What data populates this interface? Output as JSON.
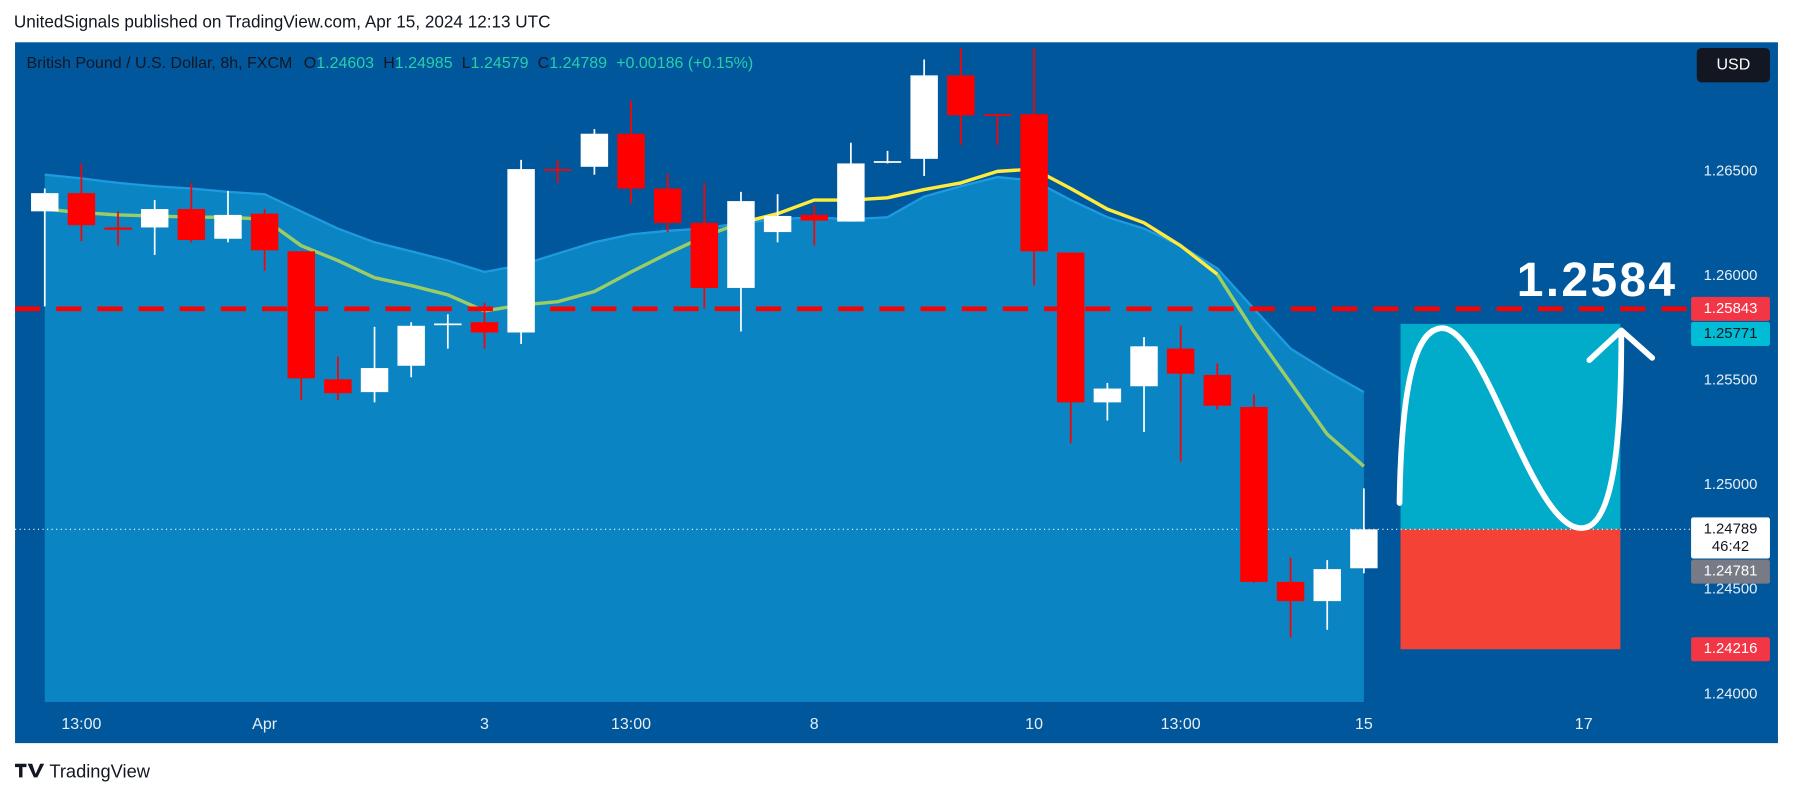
{
  "header": "UnitedSignals published on TradingView.com, Apr 15, 2024 12:13 UTC",
  "footer": "TradingView",
  "currency_button": "USD",
  "chart_data": {
    "type": "candlestick",
    "title": "British Pound / U.S. Dollar, 8h, FXCM",
    "ohlc_labels": [
      "O",
      "H",
      "L",
      "C"
    ],
    "change": "+0.00186 (+0.15%)",
    "categories": [
      null,
      "13:00",
      null,
      null,
      null,
      null,
      "Apr",
      null,
      null,
      null,
      null,
      null,
      "3",
      null,
      null,
      null,
      "13:00",
      null,
      null,
      null,
      null,
      "8",
      null,
      null,
      null,
      null,
      null,
      "10",
      null,
      null,
      null,
      "13:00",
      null,
      null,
      null,
      null,
      "15",
      null,
      null,
      null,
      null,
      null,
      "17"
    ],
    "open": [
      1.26309,
      1.26396,
      1.26232,
      1.26232,
      1.2632,
      1.26178,
      1.26298,
      1.26118,
      1.25506,
      1.25445,
      1.25571,
      1.25768,
      1.25779,
      1.2573,
      1.26511,
      1.26522,
      1.2668,
      1.26418,
      1.26254,
      1.25943,
      1.2621,
      1.26292,
      1.2626,
      1.26544,
      1.2656,
      1.26959,
      1.26773,
      1.26773,
      1.26112,
      1.25396,
      1.25473,
      1.25653,
      1.25527,
      1.25374,
      1.24538,
      1.24446,
      1.24603,
      null,
      null,
      null,
      null,
      null,
      null
    ],
    "high": [
      1.26418,
      1.26538,
      1.26309,
      1.26363,
      1.26445,
      1.26407,
      1.2632,
      1.26118,
      1.25615,
      1.25757,
      1.25779,
      1.25817,
      1.25872,
      1.26555,
      1.26555,
      1.26702,
      1.26839,
      1.26489,
      1.26445,
      1.26402,
      1.26391,
      1.26336,
      1.26637,
      1.26598,
      1.27035,
      1.2709,
      1.26773,
      1.2709,
      1.26112,
      1.25489,
      1.25708,
      1.25762,
      1.25582,
      1.25435,
      1.24653,
      1.24642,
      1.24985,
      null,
      null,
      null,
      null,
      null,
      null
    ],
    "low": [
      1.25855,
      1.26167,
      1.26145,
      1.26101,
      1.26161,
      1.26161,
      1.26025,
      1.25407,
      1.25407,
      1.25396,
      1.25516,
      1.25653,
      1.25653,
      1.25675,
      1.26445,
      1.26484,
      1.26347,
      1.2621,
      1.25844,
      1.25735,
      1.26161,
      1.26145,
      1.2626,
      1.26538,
      1.26478,
      1.26626,
      1.26626,
      1.25954,
      1.252,
      1.25309,
      1.25254,
      1.25112,
      1.25363,
      1.24533,
      1.24271,
      1.24309,
      1.24579,
      null,
      null,
      null,
      null,
      null,
      null
    ],
    "close": [
      1.26396,
      1.26243,
      1.26221,
      1.2632,
      1.26172,
      1.26292,
      1.26123,
      1.25511,
      1.2544,
      1.2556,
      1.25762,
      1.25773,
      1.2573,
      1.26511,
      1.26506,
      1.2668,
      1.26418,
      1.26254,
      1.25943,
      1.26358,
      1.26287,
      1.26265,
      1.26538,
      1.26549,
      1.26959,
      1.26768,
      1.26768,
      1.26118,
      1.25396,
      1.25462,
      1.25664,
      1.25533,
      1.2538,
      1.24538,
      1.24446,
      1.24599,
      1.24789,
      null,
      null,
      null,
      null,
      null,
      null
    ],
    "up_color": "#ffffff",
    "down_color": "#ff0000",
    "overlays": [
      {
        "kind": "area",
        "color": "#0a84c2",
        "edge_color": "#1e9be0",
        "values": [
          1.26484,
          1.26467,
          1.26445,
          1.26429,
          1.26418,
          1.26402,
          1.26391,
          1.26309,
          1.26227,
          1.26161,
          1.26118,
          1.26074,
          1.26019,
          1.26052,
          1.26107,
          1.26161,
          1.26199,
          1.26216,
          1.26227,
          1.26254,
          1.26271,
          1.26281,
          1.26271,
          1.26281,
          1.2638,
          1.26429,
          1.26473,
          1.26456,
          1.26363,
          1.26281,
          1.26227,
          1.26145,
          1.26036,
          1.25844,
          1.25653,
          1.25544,
          1.25445,
          null,
          null,
          null,
          null,
          null,
          null
        ]
      },
      {
        "kind": "line",
        "color": "#9ccc65",
        "values": [
          1.2632,
          1.26303,
          1.26292,
          1.26287,
          1.26281,
          1.26281,
          1.26271,
          1.26145,
          1.26074,
          1.25992,
          1.25954,
          1.2591,
          1.25833,
          1.25861,
          1.25877,
          1.25926,
          1.26019,
          1.26107,
          1.26189,
          1.26254,
          null,
          null,
          null,
          null,
          null,
          null,
          null,
          null,
          null,
          null,
          null,
          null,
          1.26008,
          1.25735,
          1.25489,
          1.25243,
          1.2509,
          null,
          null,
          null,
          null,
          null,
          null
        ]
      },
      {
        "kind": "line",
        "color": "#ffeb3b",
        "values": [
          null,
          null,
          null,
          null,
          null,
          null,
          null,
          null,
          null,
          null,
          null,
          null,
          null,
          null,
          null,
          null,
          null,
          null,
          null,
          1.26254,
          1.26298,
          1.26363,
          1.26363,
          1.26374,
          1.26413,
          1.26445,
          1.265,
          1.26511,
          1.26418,
          1.2632,
          1.26254,
          1.26145,
          1.26008,
          null,
          null,
          null,
          null,
          null,
          null,
          null,
          null,
          null,
          null
        ]
      }
    ],
    "ylim": [
      1.23964,
      1.27117
    ],
    "yticks": [
      {
        "value": 1.265,
        "label": "1.26500"
      },
      {
        "value": 1.26,
        "label": "1.26000"
      },
      {
        "value": 1.255,
        "label": "1.25500"
      },
      {
        "value": 1.25,
        "label": "1.25000"
      },
      {
        "value": 1.245,
        "label": "1.24500"
      },
      {
        "value": 1.24,
        "label": "1.24000"
      }
    ],
    "grid": false,
    "level": {
      "value": 1.25843,
      "label": "1.2584",
      "color": "#ff0000"
    },
    "price_tags": [
      {
        "value": 1.25843,
        "color": "#f23645",
        "text_color": "#ffffff"
      },
      {
        "value": 1.25771,
        "color": "#00bcd4",
        "text_color": "#131722"
      },
      {
        "value": 1.24789,
        "countdown": "46:42",
        "color": "#ffffff",
        "text_color": "#131722"
      },
      {
        "value": 1.24781,
        "color": "#787b86",
        "text_color": "#ffffff"
      },
      {
        "value": 1.24216,
        "color": "#f23645",
        "text_color": "#ffffff"
      }
    ],
    "position": {
      "target_tag": 1,
      "entry_tag": 2,
      "stop_tag": 4,
      "target_color": "#00acc9",
      "stop_color": "#f44336"
    }
  }
}
